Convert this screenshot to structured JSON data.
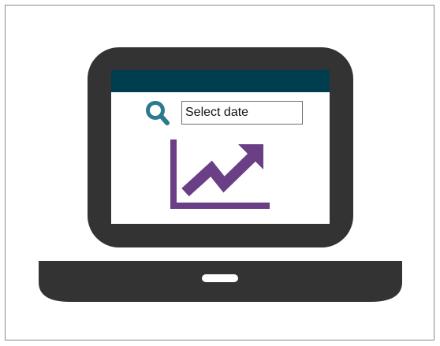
{
  "search": {
    "text": "Select date"
  },
  "icons": {
    "search": "search-icon",
    "chart": "trend-up-chart-icon"
  },
  "colors": {
    "laptop_body": "#333333",
    "screen_header": "#003d4f",
    "search_icon": "#2b7a8d",
    "chart": "#6a3f86",
    "frame": "#8a8a8a",
    "page_background": "#ffffff"
  }
}
